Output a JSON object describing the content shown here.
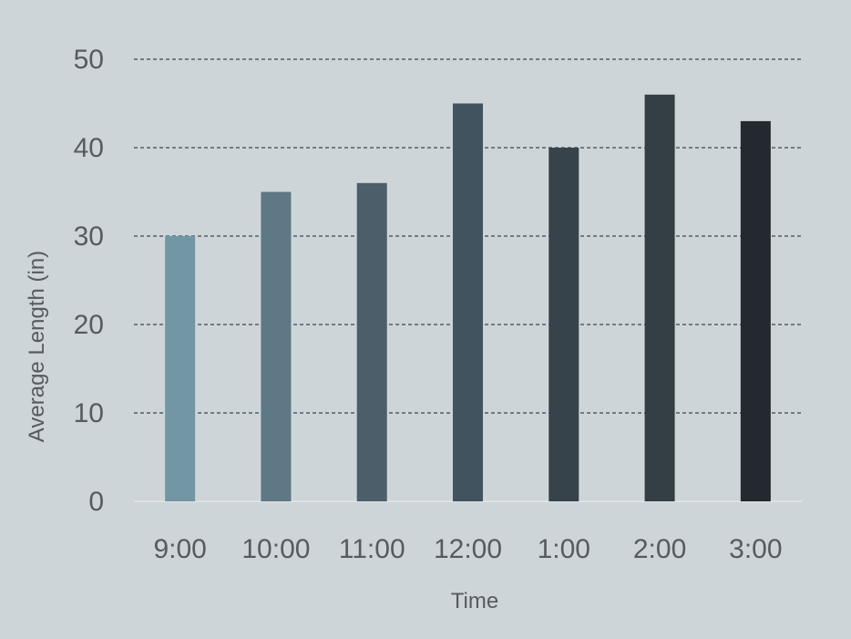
{
  "chart_data": {
    "type": "bar",
    "title": "",
    "xlabel": "Time",
    "ylabel": "Average Length (in)",
    "categories": [
      "9:00",
      "10:00",
      "11:00",
      "12:00",
      "1:00",
      "2:00",
      "3:00"
    ],
    "values": [
      30,
      35,
      36,
      45,
      40,
      46,
      43
    ],
    "colors": [
      "#7396a4",
      "#5e7885",
      "#4b5e6a",
      "#41535f",
      "#36434b",
      "#333f45",
      "#23292e"
    ],
    "ylim": [
      0,
      50
    ],
    "yticks": [
      "0",
      "10",
      "20",
      "30",
      "40",
      "50"
    ],
    "grid": true,
    "legend": "none"
  }
}
